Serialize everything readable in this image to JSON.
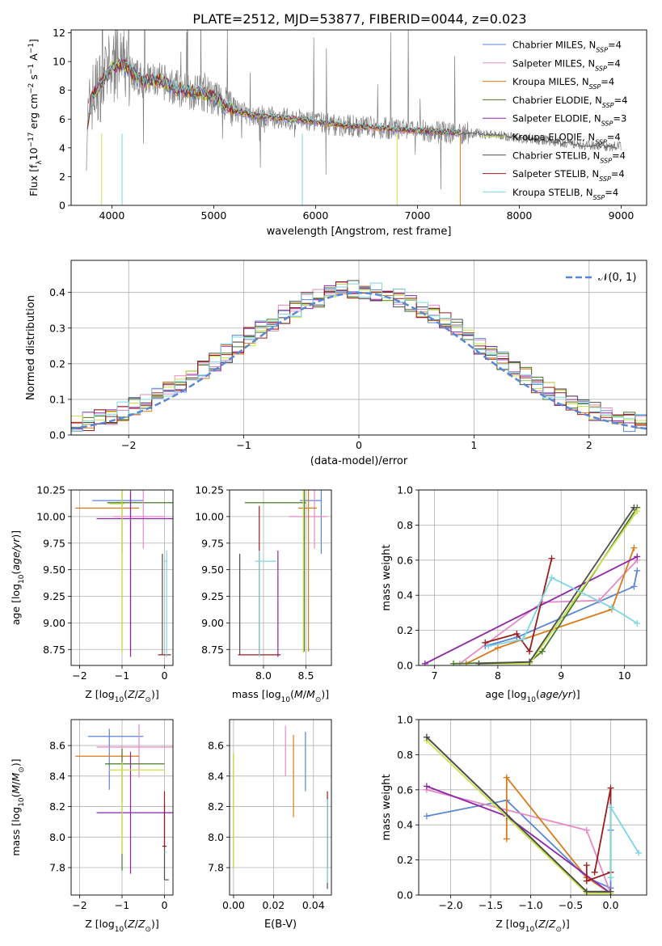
{
  "figure": {
    "title": "PLATE=2512, MJD=53877, FIBERID=0044, z=0.023"
  },
  "chart_data": [
    {
      "id": "spectrum",
      "type": "line",
      "xlabel": "wavelength [Angstrom, rest frame]",
      "ylabel": "Flux [f_λ 10^-17 erg cm^-2 s^-1 A^-1]",
      "xlim": [
        3600,
        9250
      ],
      "ylim": [
        0,
        12.2
      ],
      "xticks": [
        4000,
        5000,
        6000,
        7000,
        8000,
        9000
      ],
      "yticks": [
        0,
        2,
        4,
        6,
        8,
        10,
        12
      ],
      "grid": false,
      "legend_position": "top-right",
      "data_series": {
        "name": "",
        "color": "#808080",
        "x": [
          3750,
          3800,
          3900,
          4000,
          4100,
          4200,
          4300,
          4400,
          4500,
          4600,
          4700,
          4800,
          4900,
          5000,
          5200,
          5400,
          5600,
          5800,
          6000,
          6200,
          6400,
          6600,
          6800,
          7000,
          7200,
          7400,
          7600,
          7800,
          8000,
          8200,
          8400,
          8600,
          8800,
          9000
        ],
        "y": [
          5.0,
          7.5,
          8.5,
          9.6,
          9.8,
          9.2,
          8.6,
          8.7,
          8.6,
          8.2,
          8.0,
          7.9,
          7.8,
          7.5,
          6.6,
          6.2,
          6.1,
          6.0,
          5.8,
          5.6,
          5.5,
          5.4,
          5.3,
          5.2,
          5.1,
          5.05,
          5.0,
          4.9,
          4.7,
          4.55,
          4.4,
          4.2,
          4.1,
          4.1
        ]
      },
      "series": [
        {
          "name": "Chabrier MILES, N_SSP=4",
          "color": "#5a86d6"
        },
        {
          "name": "Salpeter MILES, N_SSP=4",
          "color": "#e78ac3"
        },
        {
          "name": "Kroupa MILES, N_SSP=4",
          "color": "#d97a1a"
        },
        {
          "name": "Chabrier ELODIE, N_SSP=4",
          "color": "#4a7a2a"
        },
        {
          "name": "Salpeter ELODIE, N_SSP=3",
          "color": "#8e24aa"
        },
        {
          "name": "Kroupa ELODIE, N_SSP=4",
          "color": "#c8e34a"
        },
        {
          "name": "Chabrier STELIB, N_SSP=4",
          "color": "#4d4d4d"
        },
        {
          "name": "Salpeter STELIB, N_SSP=4",
          "color": "#9b1c1c"
        },
        {
          "name": "Kroupa STELIB, N_SSP=4",
          "color": "#7fd6de"
        }
      ],
      "model": {
        "x": [
          3750,
          3800,
          3900,
          4000,
          4100,
          4200,
          4300,
          4400,
          4500,
          4600,
          4700,
          4800,
          4900,
          5000,
          5200,
          5400,
          5600,
          5800,
          6000,
          6200,
          6400,
          6600,
          6800,
          7000,
          7200,
          7400
        ],
        "y": [
          5.0,
          7.5,
          8.5,
          9.6,
          9.8,
          9.2,
          8.6,
          8.7,
          8.6,
          8.2,
          8.0,
          7.9,
          7.8,
          7.5,
          6.6,
          6.2,
          6.1,
          6.0,
          5.8,
          5.6,
          5.5,
          5.4,
          5.3,
          5.2,
          5.1,
          5.05
        ],
        "x_end": [
          8000,
          9000
        ]
      }
    },
    {
      "id": "residual-histogram",
      "type": "histogram",
      "xlabel": "(data-model)/error",
      "ylabel": "Normed distribution",
      "xlim": [
        -2.5,
        2.5
      ],
      "ylim": [
        0,
        0.49
      ],
      "xticks": [
        -2,
        -1,
        0,
        1,
        2
      ],
      "yticks": [
        0.0,
        0.1,
        0.2,
        0.3,
        0.4
      ],
      "grid": true,
      "legend_position": "top-right",
      "reference": {
        "name": "𝒩(0, 1)",
        "color": "#5a86d6",
        "type": "normal-pdf",
        "mean": 0,
        "sigma": 1
      },
      "bin_start": -2.5,
      "bin_width": 0.1
    },
    {
      "id": "age-vs-z",
      "type": "errorbar",
      "xlabel": "Z [log10(Z/Z⊙)]",
      "ylabel": "age [log10(age/yr)]",
      "xlim": [
        -2.2,
        0.2
      ],
      "ylim": [
        8.6,
        10.25
      ],
      "xticks": [
        -2,
        -1,
        0
      ],
      "yticks": [
        8.75,
        9.0,
        9.25,
        9.5,
        9.75,
        10.0,
        10.25
      ],
      "grid": true,
      "points": [
        {
          "color": "#5a86d6",
          "x": -1.0,
          "xerr": [
            0.7,
            0.5
          ],
          "y": 10.15,
          "yerr": [
            0.5,
            0.1
          ]
        },
        {
          "color": "#d97a1a",
          "x": -1.0,
          "xerr": [
            1.1,
            0.4
          ],
          "y": 10.08,
          "yerr": [
            1.35,
            0.2
          ]
        },
        {
          "color": "#4a7a2a",
          "x": -0.8,
          "xerr": [
            0.55,
            1.0
          ],
          "y": 10.13,
          "yerr": [
            1.4,
            0.12
          ]
        },
        {
          "color": "#e78ac3",
          "x": -0.5,
          "xerr": [
            0.7,
            0.5
          ],
          "y": 10.0,
          "yerr": [
            0.3,
            0.25
          ]
        },
        {
          "color": "#8e24aa",
          "x": -0.8,
          "xerr": [
            0.8,
            1.0
          ],
          "y": 9.98,
          "yerr": [
            1.3,
            0.25
          ]
        },
        {
          "color": "#c8e34a",
          "x": -1.0,
          "xerr": [
            0.3,
            0.05
          ],
          "y": 10.12,
          "yerr": [
            1.4,
            0.13
          ]
        },
        {
          "color": "#4d4d4d",
          "x": -0.05,
          "xerr": [
            0.0,
            0.0
          ],
          "y": 9.65,
          "yerr": [
            0.95,
            0.0
          ]
        },
        {
          "color": "#9b1c1c",
          "x": 0.0,
          "xerr": [
            0.15,
            0.15
          ],
          "y": 8.7,
          "yerr": [
            0.0,
            0.0
          ]
        },
        {
          "color": "#7fd6de",
          "x": 0.05,
          "xerr": [
            0.05,
            0.0
          ],
          "y": 9.58,
          "yerr": [
            0.9,
            0.1
          ]
        }
      ]
    },
    {
      "id": "age-vs-mass",
      "type": "errorbar",
      "xlabel": "mass [log10(M/M⊙)]",
      "ylabel": "",
      "xlim": [
        7.6,
        8.8
      ],
      "ylim": [
        8.6,
        10.25
      ],
      "xticks": [
        8.0,
        8.5
      ],
      "yticks": [
        8.75,
        9.0,
        9.25,
        9.5,
        9.75,
        10.0,
        10.25
      ],
      "grid": true,
      "points": [
        {
          "color": "#5a86d6",
          "x": 8.68,
          "xerr": [
            0.25,
            0.0
          ],
          "y": 10.15,
          "yerr": [
            0.5,
            0.1
          ]
        },
        {
          "color": "#e78ac3",
          "x": 8.6,
          "xerr": [
            0.3,
            0.15
          ],
          "y": 10.0,
          "yerr": [
            0.3,
            0.25
          ]
        },
        {
          "color": "#d97a1a",
          "x": 8.53,
          "xerr": [
            0.12,
            0.1
          ],
          "y": 10.08,
          "yerr": [
            1.35,
            0.2
          ]
        },
        {
          "color": "#4a7a2a",
          "x": 8.48,
          "xerr": [
            0.7,
            0.02
          ],
          "y": 10.13,
          "yerr": [
            1.4,
            0.12
          ]
        },
        {
          "color": "#8e24aa",
          "x": 8.17,
          "xerr": [
            0.0,
            0.0
          ],
          "y": 9.58,
          "yerr": [
            0.9,
            0.1
          ]
        },
        {
          "color": "#c8e34a",
          "x": 8.47,
          "xerr": [
            0.0,
            0.0
          ],
          "y": 10.12,
          "yerr": [
            1.4,
            0.13
          ]
        },
        {
          "color": "#4d4d4d",
          "x": 7.72,
          "xerr": [
            0.0,
            0.0
          ],
          "y": 9.65,
          "yerr": [
            0.95,
            0.0
          ]
        },
        {
          "color": "#9b1c1c",
          "x": 7.95,
          "xerr": [
            0.25,
            0.25
          ],
          "y": 8.7,
          "yerr": [
            0.0,
            1.4
          ]
        },
        {
          "color": "#7fd6de",
          "x": 7.95,
          "xerr": [
            0.05,
            0.2
          ],
          "y": 9.58,
          "yerr": [
            0.9,
            0.1
          ]
        }
      ]
    },
    {
      "id": "weight-vs-age",
      "type": "line",
      "xlabel": "age [log10(age/yr)]",
      "ylabel": "mass weight",
      "xlim": [
        6.75,
        10.35
      ],
      "ylim": [
        0,
        1.0
      ],
      "xticks": [
        7,
        8,
        9,
        10
      ],
      "yticks": [
        0.0,
        0.2,
        0.4,
        0.6,
        0.8,
        1.0
      ],
      "grid": true,
      "series": [
        {
          "name": "",
          "color": "#5a86d6",
          "x": [
            7.8,
            8.3,
            10.15,
            10.2
          ],
          "y": [
            0.11,
            0.16,
            0.45,
            0.54
          ]
        },
        {
          "name": "",
          "color": "#e78ac3",
          "x": [
            7.4,
            8.7,
            9.6,
            10.2
          ],
          "y": [
            0.01,
            0.36,
            0.37,
            0.6
          ]
        },
        {
          "name": "",
          "color": "#d97a1a",
          "x": [
            7.5,
            8.0,
            9.8,
            10.15
          ],
          "y": [
            0.01,
            0.1,
            0.32,
            0.67
          ]
        },
        {
          "name": "",
          "color": "#4a7a2a",
          "x": [
            7.3,
            8.5,
            8.7,
            10.2
          ],
          "y": [
            0.01,
            0.02,
            0.08,
            0.9
          ]
        },
        {
          "name": "",
          "color": "#8e24aa",
          "x": [
            6.85,
            10.2
          ],
          "y": [
            0.01,
            0.62
          ]
        },
        {
          "name": "",
          "color": "#c8e34a",
          "x": [
            7.7,
            8.5,
            10.2
          ],
          "y": [
            0.01,
            0.01,
            0.88
          ]
        },
        {
          "name": "",
          "color": "#4d4d4d",
          "x": [
            7.7,
            8.5,
            10.15
          ],
          "y": [
            0.01,
            0.02,
            0.9
          ]
        },
        {
          "name": "",
          "color": "#9b1c1c",
          "x": [
            7.8,
            8.3,
            8.5,
            8.85
          ],
          "y": [
            0.13,
            0.18,
            0.08,
            0.61
          ]
        },
        {
          "name": "",
          "color": "#7fd6de",
          "x": [
            7.85,
            8.4,
            8.85,
            9.8,
            10.2
          ],
          "y": [
            0.11,
            0.15,
            0.5,
            0.33,
            0.24
          ]
        }
      ]
    },
    {
      "id": "mass-vs-z",
      "type": "errorbar",
      "xlabel": "Z [log10(Z/Z⊙)]",
      "ylabel": "mass [log10(M/M⊙)]",
      "xlim": [
        -2.2,
        0.2
      ],
      "ylim": [
        7.62,
        8.77
      ],
      "xticks": [
        -2,
        -1,
        0
      ],
      "yticks": [
        7.8,
        8.0,
        8.2,
        8.4,
        8.6
      ],
      "grid": true,
      "points": [
        {
          "color": "#5a86d6",
          "x": -1.3,
          "xerr": [
            0.5,
            0.8
          ],
          "y": 8.66,
          "yerr": [
            0.35,
            0.05
          ]
        },
        {
          "color": "#e78ac3",
          "x": -0.6,
          "xerr": [
            1.0,
            0.8
          ],
          "y": 8.59,
          "yerr": [
            0.2,
            0.15
          ]
        },
        {
          "color": "#d97a1a",
          "x": -1.0,
          "xerr": [
            1.1,
            0.4
          ],
          "y": 8.53,
          "yerr": [
            0.3,
            0.05
          ]
        },
        {
          "color": "#4a7a2a",
          "x": -1.0,
          "xerr": [
            0.4,
            1.0
          ],
          "y": 8.48,
          "yerr": [
            0.7,
            0.1
          ]
        },
        {
          "color": "#8e24aa",
          "x": -0.8,
          "xerr": [
            0.8,
            1.0
          ],
          "y": 8.16,
          "yerr": [
            0.4,
            0.4
          ]
        },
        {
          "color": "#c8e34a",
          "x": -1.0,
          "xerr": [
            0.3,
            1.0
          ],
          "y": 8.44,
          "yerr": [
            0.55,
            0.05
          ]
        },
        {
          "color": "#4d4d4d",
          "x": 0.0,
          "xerr": [
            0.0,
            0.1
          ],
          "y": 7.72,
          "yerr": [
            0.0,
            0.5
          ]
        },
        {
          "color": "#9b1c1c",
          "x": 0.0,
          "xerr": [
            0.05,
            0.05
          ],
          "y": 7.94,
          "yerr": [
            0.0,
            0.36
          ]
        },
        {
          "color": "#7fd6de",
          "x": 0.05,
          "xerr": [
            0.05,
            0.0
          ],
          "y": 7.9,
          "yerr": [
            0.0,
            0.0
          ]
        }
      ]
    },
    {
      "id": "mass-vs-ebv",
      "type": "errorbar",
      "xlabel": "E(B-V)",
      "ylabel": "",
      "xlim": [
        -0.002,
        0.049
      ],
      "ylim": [
        7.62,
        8.77
      ],
      "xticks": [
        0.0,
        0.02,
        0.04
      ],
      "yticks": [
        7.8,
        8.0,
        8.2,
        8.4,
        8.6
      ],
      "grid": true,
      "points": [
        {
          "color": "#5a86d6",
          "x": 0.036,
          "xerr": [
            0,
            0
          ],
          "y": 8.5,
          "yerr": [
            0.2,
            0.19
          ]
        },
        {
          "color": "#e78ac3",
          "x": 0.026,
          "xerr": [
            0,
            0
          ],
          "y": 8.55,
          "yerr": [
            0.15,
            0.18
          ]
        },
        {
          "color": "#d97a1a",
          "x": 0.03,
          "xerr": [
            0,
            0
          ],
          "y": 8.4,
          "yerr": [
            0.27,
            0.27
          ]
        },
        {
          "color": "#4a7a2a",
          "x": 0.0,
          "xerr": [
            0,
            0
          ],
          "y": 8.1,
          "yerr": [
            0.3,
            0.45
          ]
        },
        {
          "color": "#c8e34a",
          "x": 0.0,
          "xerr": [
            0,
            0
          ],
          "y": 8.1,
          "yerr": [
            0.3,
            0.45
          ]
        },
        {
          "color": "#4d4d4d",
          "x": 0.047,
          "xerr": [
            0,
            0
          ],
          "y": 7.96,
          "yerr": [
            0.3,
            0.3
          ]
        },
        {
          "color": "#9b1c1c",
          "x": 0.047,
          "xerr": [
            0,
            0
          ],
          "y": 8.1,
          "yerr": [
            0.3,
            0.2
          ]
        },
        {
          "color": "#7fd6de",
          "x": 0.047,
          "xerr": [
            0,
            0
          ],
          "y": 8.0,
          "yerr": [
            0.3,
            0.25
          ]
        }
      ]
    },
    {
      "id": "weight-vs-z",
      "type": "line",
      "xlabel": "Z [log10(Z/Z⊙)]",
      "ylabel": "mass weight",
      "xlim": [
        -2.4,
        0.45
      ],
      "ylim": [
        0,
        1.0
      ],
      "xticks": [
        -2.0,
        -1.5,
        -1.0,
        -0.5,
        0.0
      ],
      "yticks": [
        0.0,
        0.2,
        0.4,
        0.6,
        0.8,
        1.0
      ],
      "grid": true,
      "series": [
        {
          "name": "",
          "color": "#5a86d6",
          "x": [
            -2.3,
            -1.3,
            -0.3,
            0.0,
            0.0
          ],
          "y": [
            0.45,
            0.54,
            0.1,
            0.04,
            0.37
          ]
        },
        {
          "name": "",
          "color": "#e78ac3",
          "x": [
            -2.3,
            -0.3,
            0.0
          ],
          "y": [
            0.6,
            0.37,
            0.01
          ]
        },
        {
          "name": "",
          "color": "#d97a1a",
          "x": [
            -1.3,
            -1.3,
            -0.3,
            0.0
          ],
          "y": [
            0.32,
            0.67,
            0.1,
            0.01
          ]
        },
        {
          "name": "",
          "color": "#4a7a2a",
          "x": [
            -2.3,
            -0.3,
            0.0
          ],
          "y": [
            0.9,
            0.02,
            0.01
          ]
        },
        {
          "name": "",
          "color": "#8e24aa",
          "x": [
            -2.3,
            -1.3,
            0.0
          ],
          "y": [
            0.62,
            0.45,
            0.01
          ]
        },
        {
          "name": "",
          "color": "#c8e34a",
          "x": [
            -2.3,
            -0.3,
            0.0
          ],
          "y": [
            0.88,
            0.01,
            0.01
          ]
        },
        {
          "name": "",
          "color": "#4d4d4d",
          "x": [
            -2.3,
            -0.3,
            0.0
          ],
          "y": [
            0.9,
            0.02,
            0.02
          ]
        },
        {
          "name": "",
          "color": "#9b1c1c",
          "x": [
            -0.3,
            -0.3,
            0.0,
            0.0,
            -0.2
          ],
          "y": [
            0.17,
            0.08,
            0.13,
            0.61,
            0.13
          ]
        },
        {
          "name": "",
          "color": "#7fd6de",
          "x": [
            0.0,
            0.0,
            0.35
          ],
          "y": [
            0.1,
            0.5,
            0.24
          ]
        }
      ]
    }
  ]
}
